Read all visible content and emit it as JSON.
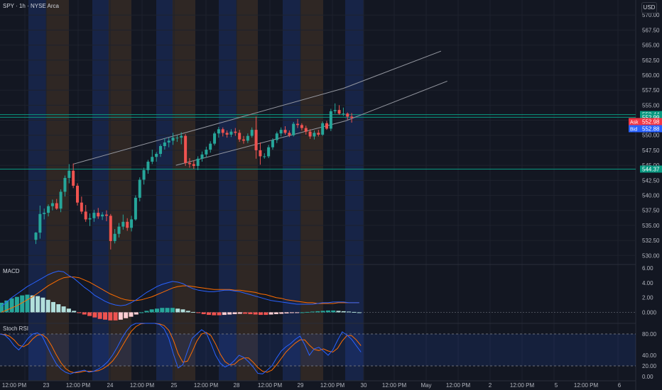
{
  "header": {
    "symbol_line": "SPY · 1h · NYSE Arca",
    "currency": "USD"
  },
  "colors": {
    "bg": "#131722",
    "up": "#26a69a",
    "down": "#ef5350",
    "grid": "#1e222d",
    "text": "#b2b5be",
    "macd_line": "#2962ff",
    "signal_line": "#ff6d00",
    "hist_up_strong": "#26a69a",
    "hist_up_weak": "#b2dfdb",
    "hist_down_strong": "#ef5350",
    "hist_down_weak": "#ffcdd2",
    "session_blue": "#1a2a54",
    "session_orange": "#3a2e26",
    "level_line": "#089981"
  },
  "chart_data": [
    {
      "type": "candlestick",
      "title": "SPY · 1h · NYSE Arca",
      "ylim": [
        528.5,
        572.5
      ],
      "y_ticks": [
        "570.00",
        "567.50",
        "565.00",
        "562.50",
        "560.00",
        "557.50",
        "555.00",
        "552.50",
        "550.00",
        "547.50",
        "545.00",
        "542.50",
        "540.00",
        "537.50",
        "535.00",
        "532.50",
        "530.00"
      ],
      "x_labels": [
        "12:00 PM",
        "23",
        "12:00 PM",
        "24",
        "12:00 PM",
        "25",
        "12:00 PM",
        "28",
        "12:00 PM",
        "29",
        "12:00 PM",
        "30",
        "12:00 PM",
        "May",
        "12:00 PM",
        "2",
        "12:00 PM",
        "5",
        "12:00 PM",
        "6"
      ],
      "candles": [
        [
          532.6,
          533.9,
          531.9,
          533.8
        ],
        [
          533.8,
          538.3,
          532.8,
          536.9
        ],
        [
          536.9,
          537.8,
          536.0,
          537.1
        ],
        [
          537.1,
          538.5,
          536.5,
          538.2
        ],
        [
          538.2,
          539.3,
          537.5,
          538.7
        ],
        [
          538.7,
          539.4,
          537.6,
          537.8
        ],
        [
          537.8,
          541.0,
          537.2,
          540.6
        ],
        [
          540.6,
          543.3,
          539.8,
          542.9
        ],
        [
          542.9,
          545.2,
          542.0,
          544.1
        ],
        [
          544.1,
          545.3,
          541.2,
          541.6
        ],
        [
          541.6,
          542.0,
          538.3,
          538.8
        ],
        [
          538.8,
          539.8,
          536.9,
          537.3
        ],
        [
          537.3,
          538.4,
          535.6,
          536.0
        ],
        [
          536.0,
          537.0,
          534.9,
          536.2
        ],
        [
          536.2,
          537.6,
          535.6,
          537.1
        ],
        [
          537.1,
          537.9,
          536.1,
          536.5
        ],
        [
          536.5,
          537.2,
          535.9,
          536.8
        ],
        [
          536.8,
          537.5,
          535.7,
          536.6
        ],
        [
          536.6,
          536.9,
          531.0,
          532.4
        ],
        [
          532.4,
          534.4,
          532.0,
          533.6
        ],
        [
          533.6,
          535.4,
          533.0,
          534.8
        ],
        [
          534.8,
          536.8,
          534.3,
          535.6
        ],
        [
          535.6,
          536.2,
          534.1,
          534.6
        ],
        [
          534.6,
          536.6,
          534.0,
          536.0
        ],
        [
          536.0,
          540.0,
          535.8,
          539.6
        ],
        [
          539.6,
          543.0,
          539.0,
          542.6
        ],
        [
          542.6,
          544.6,
          541.8,
          544.2
        ],
        [
          544.2,
          545.9,
          543.6,
          545.6
        ],
        [
          545.6,
          547.6,
          545.2,
          546.4
        ],
        [
          546.4,
          547.2,
          545.6,
          546.9
        ],
        [
          546.9,
          548.5,
          546.4,
          548.2
        ],
        [
          548.2,
          549.5,
          547.6,
          548.8
        ],
        [
          548.8,
          549.6,
          548.0,
          549.1
        ],
        [
          549.1,
          550.4,
          548.4,
          549.6
        ],
        [
          549.6,
          550.0,
          548.9,
          549.6
        ],
        [
          549.6,
          550.5,
          548.5,
          549.9
        ],
        [
          549.9,
          550.2,
          544.9,
          545.4
        ],
        [
          545.4,
          546.2,
          544.6,
          545.2
        ],
        [
          545.2,
          545.8,
          544.4,
          544.9
        ],
        [
          544.9,
          546.5,
          544.2,
          546.1
        ],
        [
          546.1,
          547.3,
          545.6,
          546.8
        ],
        [
          546.8,
          548.1,
          546.3,
          547.6
        ],
        [
          547.6,
          549.0,
          547.1,
          548.6
        ],
        [
          548.6,
          550.6,
          548.3,
          550.3
        ],
        [
          550.3,
          551.4,
          549.6,
          551.0
        ],
        [
          551.0,
          551.3,
          549.8,
          550.4
        ],
        [
          550.4,
          550.8,
          549.6,
          550.1
        ],
        [
          550.1,
          551.0,
          549.7,
          550.6
        ],
        [
          550.6,
          551.2,
          549.9,
          550.4
        ],
        [
          550.4,
          550.9,
          548.9,
          549.3
        ],
        [
          549.3,
          549.9,
          548.6,
          549.1
        ],
        [
          549.1,
          550.3,
          548.7,
          549.9
        ],
        [
          549.9,
          551.3,
          549.6,
          550.9
        ],
        [
          550.9,
          553.1,
          546.1,
          547.5
        ],
        [
          547.5,
          548.8,
          545.1,
          546.5
        ],
        [
          546.5,
          547.0,
          546.1,
          546.5
        ],
        [
          546.5,
          548.4,
          546.2,
          548.0
        ],
        [
          548.0,
          549.5,
          547.6,
          549.2
        ],
        [
          549.2,
          550.6,
          548.7,
          550.3
        ],
        [
          550.3,
          551.3,
          549.8,
          550.9
        ],
        [
          550.9,
          551.5,
          550.1,
          550.4
        ],
        [
          550.4,
          550.8,
          549.7,
          550.0
        ],
        [
          550.0,
          552.2,
          549.8,
          551.9
        ],
        [
          551.9,
          552.7,
          551.2,
          551.7
        ],
        [
          551.7,
          552.0,
          550.8,
          551.2
        ],
        [
          551.2,
          551.6,
          550.1,
          550.6
        ],
        [
          550.6,
          551.0,
          549.4,
          549.8
        ],
        [
          549.8,
          550.8,
          549.3,
          550.4
        ],
        [
          550.4,
          550.9,
          549.8,
          550.1
        ],
        [
          550.1,
          552.3,
          549.9,
          552.0
        ],
        [
          552.0,
          552.4,
          550.9,
          551.1
        ],
        [
          551.1,
          554.4,
          550.7,
          554.0
        ],
        [
          554.0,
          555.3,
          553.6,
          554.2
        ],
        [
          554.2,
          555.0,
          553.4,
          553.6
        ],
        [
          553.6,
          554.6,
          553.2,
          553.6
        ],
        [
          553.6,
          553.8,
          552.6,
          553.1
        ],
        [
          553.1,
          553.7,
          552.1,
          552.9
        ]
      ],
      "levels": [
        "553.44",
        "552.99",
        "544.37"
      ],
      "level_values": [
        553.44,
        552.99,
        544.37
      ],
      "ask_bid": {
        "ask_label": "Ask",
        "ask": "552.98",
        "bid_label": "Bid",
        "bid": "552.88"
      },
      "trendlines": [
        {
          "points": [
            [
              9,
              545.2
            ],
            [
              74,
              557.8
            ]
          ]
        },
        {
          "points": [
            [
              74,
              557.8
            ],
            [
              97.5,
              564.0
            ]
          ]
        },
        {
          "points": [
            [
              33.7,
              545.0
            ],
            [
              74.6,
              552.4
            ]
          ]
        },
        {
          "points": [
            [
              74.6,
              552.4
            ],
            [
              99,
              559.0
            ]
          ]
        }
      ]
    },
    {
      "type": "macd",
      "title": "MACD",
      "ylim": [
        -1.5,
        6.5
      ],
      "y_ticks": [
        "6.00",
        "4.00",
        "2.00",
        "0.000"
      ],
      "histogram": [
        1.3,
        1.6,
        1.9,
        2.1,
        2.3,
        2.4,
        2.3,
        2.2,
        2.0,
        1.7,
        1.4,
        1.1,
        0.8,
        0.5,
        0.2,
        -0.1,
        -0.3,
        -0.5,
        -0.7,
        -0.9,
        -1.0,
        -1.1,
        -1.1,
        -1.0,
        -0.8,
        -0.6,
        -0.3,
        0,
        0.2,
        0.4,
        0.5,
        0.6,
        0.6,
        0.6,
        0.5,
        0.4,
        0.2,
        0.05,
        -0.1,
        -0.25,
        -0.35,
        -0.4,
        -0.4,
        -0.35,
        -0.3,
        -0.25,
        -0.2,
        -0.2,
        -0.25,
        -0.3,
        -0.35,
        -0.35,
        -0.3,
        -0.25,
        -0.2,
        -0.15,
        -0.1,
        -0.05,
        0,
        0.05,
        0.1,
        0.15,
        0.2,
        0.25,
        0.25,
        0.2,
        0.15,
        0.1,
        0.05,
        0
      ],
      "macd": [
        0.8,
        1.4,
        2.0,
        2.5,
        3.0,
        3.5,
        3.9,
        4.3,
        4.7,
        5.1,
        5.4,
        5.6,
        5.5,
        5.0,
        4.6,
        4.0,
        3.4,
        2.9,
        2.3,
        1.9,
        1.5,
        1.2,
        1.0,
        0.9,
        1.0,
        1.3,
        1.7,
        2.2,
        2.7,
        3.1,
        3.5,
        3.8,
        4.0,
        4.2,
        4.1,
        3.9,
        3.5,
        3.2,
        3.0,
        2.9,
        2.8,
        2.8,
        2.9,
        3.0,
        3.0,
        2.9,
        2.8,
        2.6,
        2.4,
        2.2,
        2.0,
        1.8,
        1.6,
        1.5,
        1.4,
        1.3,
        1.2,
        1.1,
        1.1,
        1.1,
        1.1,
        1.2,
        1.3,
        1.3,
        1.4,
        1.4,
        1.4,
        1.3,
        1.3,
        1.3
      ],
      "signal": [
        0.0,
        0.3,
        0.6,
        0.9,
        1.3,
        1.7,
        2.1,
        2.6,
        3.1,
        3.6,
        4.0,
        4.4,
        4.7,
        4.8,
        4.8,
        4.7,
        4.4,
        4.1,
        3.7,
        3.3,
        2.9,
        2.5,
        2.2,
        1.9,
        1.7,
        1.6,
        1.6,
        1.7,
        1.9,
        2.1,
        2.4,
        2.7,
        3.0,
        3.3,
        3.5,
        3.6,
        3.6,
        3.5,
        3.4,
        3.3,
        3.2,
        3.1,
        3.1,
        3.1,
        3.1,
        3.0,
        3.0,
        2.9,
        2.8,
        2.7,
        2.5,
        2.4,
        2.2,
        2.0,
        1.9,
        1.7,
        1.6,
        1.5,
        1.4,
        1.3,
        1.3,
        1.2,
        1.2,
        1.2,
        1.2,
        1.3,
        1.3,
        1.3,
        1.3,
        1.3
      ]
    },
    {
      "type": "stoch_rsi",
      "title": "Stoch RSI",
      "ylim": [
        -8,
        100
      ],
      "y_ticks": [
        "80.00",
        "40.00",
        "20.00",
        "0.00"
      ],
      "k": [
        80,
        78,
        70,
        58,
        50,
        60,
        72,
        80,
        82,
        76,
        58,
        40,
        24,
        14,
        8,
        5,
        8,
        10,
        12,
        8,
        10,
        14,
        20,
        28,
        40,
        55,
        72,
        86,
        96,
        100,
        100,
        100,
        100,
        100,
        98,
        90,
        72,
        42,
        16,
        22,
        48,
        72,
        80,
        88,
        82,
        62,
        40,
        25,
        18,
        22,
        30,
        40,
        36,
        28,
        18,
        6,
        5,
        12,
        20,
        35,
        48,
        56,
        62,
        70,
        76,
        60,
        40,
        52,
        55,
        48,
        40,
        50,
        68,
        84,
        78,
        70,
        58,
        46
      ],
      "d": [
        80,
        79,
        76,
        69,
        59,
        56,
        61,
        71,
        78,
        79,
        72,
        58,
        41,
        26,
        15,
        9,
        7,
        8,
        10,
        10,
        10,
        11,
        15,
        21,
        29,
        41,
        56,
        71,
        85,
        94,
        99,
        100,
        100,
        100,
        99,
        96,
        87,
        68,
        43,
        27,
        29,
        47,
        67,
        80,
        83,
        77,
        61,
        42,
        28,
        22,
        23,
        31,
        35,
        35,
        27,
        17,
        10,
        8,
        12,
        22,
        34,
        46,
        55,
        63,
        69,
        69,
        59,
        51,
        49,
        52,
        48,
        46,
        53,
        67,
        77,
        77,
        69,
        58
      ]
    }
  ]
}
